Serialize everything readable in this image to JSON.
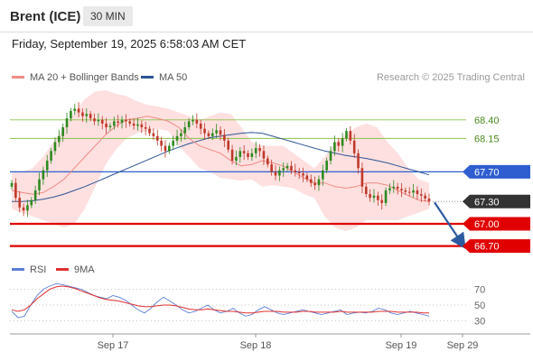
{
  "header": {
    "title": "Brent (ICE)",
    "timeframe": "30 MIN",
    "datetime": "Friday, September 19, 2025 6:58:03 AM CET"
  },
  "legend": {
    "ma20_label": "MA 20 + Bollinger Bands",
    "ma50_label": "MA 50",
    "rsi_label": "RSI",
    "rsi_ma_label": "9MA",
    "credit": "Research © 2025 Trading Central"
  },
  "colors": {
    "up": "#2d8a1f",
    "down": "#c0392b",
    "ma20": "#f08a84",
    "bands": "#fdd6d6",
    "ma50": "#2e5596",
    "resistance_green": "#8bc34a",
    "blue_line": "#2e5ecf",
    "red_line": "#e00000",
    "current": "#333333",
    "rsi": "#5b7fd6",
    "rsi_ma": "#e03030",
    "arrow": "#2c5aa0"
  },
  "chart_data": [
    {
      "type": "candlestick",
      "price_range": [
        66.55,
        68.75
      ],
      "x_labels": [
        "Sep 17",
        "Sep 18",
        "Sep 19",
        "Sep 29"
      ],
      "levels": [
        {
          "value": 68.4,
          "label": "68.40",
          "style": "resistance"
        },
        {
          "value": 68.15,
          "label": "68.15",
          "style": "resistance"
        },
        {
          "value": 67.7,
          "label": "67.70",
          "style": "pivot"
        },
        {
          "value": 67.3,
          "label": "67.30",
          "style": "current"
        },
        {
          "value": 67.0,
          "label": "67.00",
          "style": "support"
        },
        {
          "value": 66.7,
          "label": "66.70",
          "style": "support"
        }
      ],
      "closes": [
        67.55,
        67.35,
        67.22,
        67.18,
        67.25,
        67.32,
        67.45,
        67.6,
        67.72,
        67.85,
        67.98,
        68.1,
        68.18,
        68.3,
        68.42,
        68.52,
        68.55,
        68.5,
        68.45,
        68.48,
        68.42,
        68.38,
        68.4,
        68.35,
        68.3,
        68.32,
        68.38,
        68.36,
        68.4,
        68.38,
        68.35,
        68.32,
        68.34,
        68.3,
        68.28,
        68.22,
        68.18,
        68.12,
        68.05,
        67.98,
        68.05,
        68.12,
        68.18,
        68.22,
        68.3,
        68.38,
        68.4,
        68.35,
        68.28,
        68.22,
        68.18,
        68.22,
        68.26,
        68.2,
        68.12,
        68.0,
        67.85,
        67.9,
        67.98,
        67.95,
        67.9,
        67.95,
        68.02,
        67.98,
        67.88,
        67.8,
        67.7,
        67.65,
        67.72,
        67.75,
        67.78,
        67.72,
        67.7,
        67.68,
        67.65,
        67.6,
        67.55,
        67.52,
        67.6,
        67.72,
        67.85,
        67.98,
        68.1,
        68.05,
        68.15,
        68.25,
        68.12,
        67.95,
        67.75,
        67.5,
        67.4,
        67.35,
        67.38,
        67.32,
        67.28,
        67.45,
        67.48,
        67.5,
        67.47,
        67.45,
        67.43,
        67.42,
        67.45,
        67.4,
        67.38,
        67.34,
        67.3
      ],
      "ma20": [
        67.45,
        67.42,
        67.4,
        67.42,
        67.5,
        67.6,
        67.75,
        67.9,
        68.05,
        68.2,
        68.32,
        68.4,
        68.42,
        68.45,
        68.42,
        68.38,
        68.3,
        68.15,
        68.05,
        68.0,
        67.95,
        67.85,
        67.78,
        67.8,
        67.85,
        67.82,
        67.78,
        67.7,
        67.62,
        67.55,
        67.55,
        67.5,
        67.48,
        67.5,
        67.55,
        67.55,
        67.52,
        67.45,
        67.38,
        67.32,
        67.3
      ],
      "bb_upper": [
        67.7,
        67.7,
        67.75,
        67.9,
        68.1,
        68.3,
        68.5,
        68.68,
        68.78,
        68.8,
        68.75,
        68.72,
        68.65,
        68.6,
        68.58,
        68.55,
        68.5,
        68.45,
        68.4,
        68.45,
        68.5,
        68.48,
        68.3,
        68.1,
        68.05,
        68.05,
        68.05,
        67.95,
        67.85,
        67.75,
        67.9,
        68.1,
        68.2,
        68.3,
        68.35,
        68.3,
        68.1,
        67.95,
        67.75,
        67.6,
        67.55
      ],
      "bb_lower": [
        67.2,
        67.15,
        67.1,
        67.05,
        67.0,
        66.95,
        67.0,
        67.2,
        67.5,
        67.8,
        68.0,
        68.15,
        68.22,
        68.25,
        68.28,
        68.25,
        68.05,
        67.9,
        67.75,
        67.7,
        67.62,
        67.6,
        67.58,
        67.6,
        67.5,
        67.52,
        67.5,
        67.48,
        67.4,
        67.35,
        67.1,
        66.95,
        66.9,
        66.95,
        67.05,
        67.05,
        67.05,
        67.05,
        67.1,
        67.15,
        67.2
      ],
      "ma50": [
        67.3,
        67.3,
        67.31,
        67.33,
        67.36,
        67.4,
        67.45,
        67.5,
        67.56,
        67.62,
        67.68,
        67.74,
        67.8,
        67.86,
        67.92,
        67.98,
        68.03,
        68.08,
        68.12,
        68.16,
        68.18,
        68.2,
        68.22,
        68.23,
        68.22,
        68.18,
        68.14,
        68.1,
        68.06,
        68.02,
        67.98,
        67.95,
        67.92,
        67.9,
        67.88,
        67.85,
        67.82,
        67.78,
        67.74,
        67.7,
        67.66
      ]
    },
    {
      "type": "line",
      "name": "RSI",
      "y_ticks": [
        70,
        50,
        30
      ],
      "y_range": [
        18,
        82
      ],
      "rsi": [
        42,
        34,
        36,
        50,
        62,
        70,
        74,
        77,
        76,
        74,
        72,
        70,
        66,
        62,
        60,
        58,
        62,
        60,
        56,
        50,
        44,
        40,
        46,
        54,
        60,
        55,
        50,
        44,
        40,
        42,
        46,
        50,
        44,
        40,
        42,
        46,
        40,
        36,
        38,
        44,
        48,
        44,
        40,
        38,
        40,
        42,
        44,
        42,
        40,
        38,
        40,
        42,
        44,
        38,
        40,
        41,
        40,
        42,
        46,
        44,
        40,
        38,
        40,
        42,
        40,
        38,
        36
      ],
      "rsi_ma": [
        44,
        42,
        44,
        50,
        58,
        64,
        70,
        73,
        74,
        73,
        71,
        68,
        65,
        62,
        59,
        57,
        56,
        55,
        53,
        51,
        49,
        48,
        48,
        49,
        50,
        50,
        49,
        47,
        45,
        44,
        44,
        45,
        44,
        43,
        42,
        42,
        41,
        40,
        40,
        41,
        42,
        42,
        42,
        41,
        41,
        41,
        42,
        42,
        41,
        41,
        41,
        41,
        42,
        41,
        41,
        41,
        41,
        41,
        42,
        42,
        42,
        41,
        41,
        41,
        41,
        40,
        40
      ]
    }
  ]
}
